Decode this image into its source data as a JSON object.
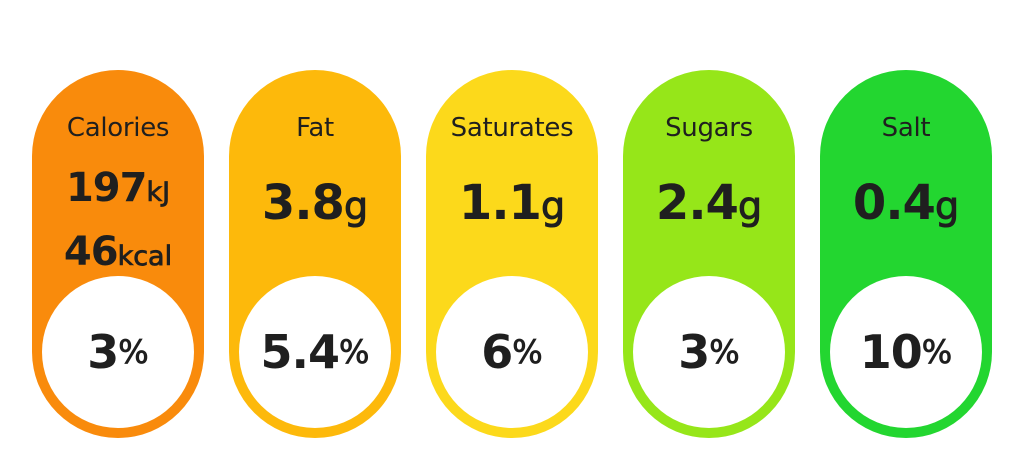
{
  "labels": [
    {
      "name": "Calories",
      "color": "#f98b0c",
      "amounts": [
        {
          "value": "197",
          "unit": "kJ"
        },
        {
          "value": "46",
          "unit": "kcal"
        }
      ],
      "percent": {
        "value": "3",
        "unit": "%"
      }
    },
    {
      "name": "Fat",
      "color": "#fdb90b",
      "amounts": [
        {
          "value": "3.8",
          "unit": "g"
        }
      ],
      "percent": {
        "value": "5.4",
        "unit": "%"
      }
    },
    {
      "name": "Saturates",
      "color": "#fcd91b",
      "amounts": [
        {
          "value": "1.1",
          "unit": "g"
        }
      ],
      "percent": {
        "value": "6",
        "unit": "%"
      }
    },
    {
      "name": "Sugars",
      "color": "#96e619",
      "amounts": [
        {
          "value": "2.4",
          "unit": "g"
        }
      ],
      "percent": {
        "value": "3",
        "unit": "%"
      }
    },
    {
      "name": "Salt",
      "color": "#23d630",
      "amounts": [
        {
          "value": "0.4",
          "unit": "g"
        }
      ],
      "percent": {
        "value": "10",
        "unit": "%"
      }
    }
  ]
}
